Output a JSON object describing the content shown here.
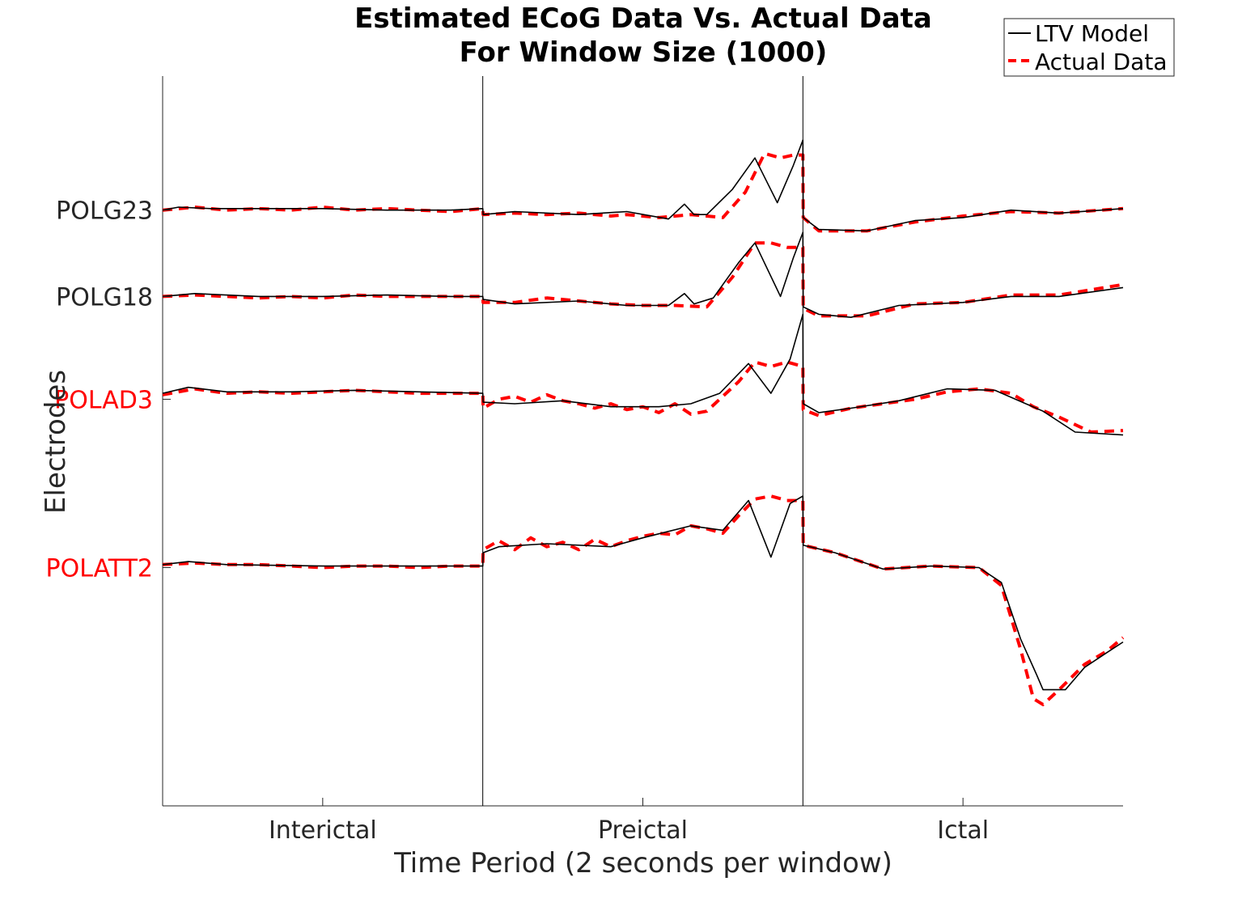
{
  "chart_data": {
    "type": "line",
    "title": [
      "Estimated ECoG Data Vs. Actual Data",
      "For Window Size (1000)"
    ],
    "xlabel": "Time Period (2 seconds per window)",
    "ylabel": "Electrodes",
    "x_ticks": [
      {
        "label": "Interictal",
        "x": 0.5
      },
      {
        "label": "Preictal",
        "x": 1.5
      },
      {
        "label": "Ictal",
        "x": 2.5
      }
    ],
    "xlim": [
      0,
      3
    ],
    "ylim": [
      -0.5,
      4.4
    ],
    "period_boundaries": [
      1,
      2
    ],
    "electrodes": [
      {
        "label": "POLG23",
        "offset": 3.5,
        "color": "#262626"
      },
      {
        "label": "POLG18",
        "offset": 2.92,
        "color": "#262626"
      },
      {
        "label": "POLAD3",
        "offset": 2.23,
        "color": "#ff0000"
      },
      {
        "label": "POLATT2",
        "offset": 1.1,
        "color": "#ff0000"
      }
    ],
    "legend": {
      "position": "top-right",
      "entries": [
        {
          "name": "LTV Model",
          "color": "#000000",
          "style": "solid"
        },
        {
          "name": "Actual Data",
          "color": "#ff0000",
          "style": "dashed"
        }
      ]
    },
    "series": [
      {
        "electrode": "POLG23",
        "model": [
          [
            0.0,
            3.5
          ],
          [
            0.05,
            3.52
          ],
          [
            0.15,
            3.51
          ],
          [
            0.3,
            3.51
          ],
          [
            0.5,
            3.51
          ],
          [
            0.7,
            3.5
          ],
          [
            0.9,
            3.5
          ],
          [
            1.0,
            3.51
          ],
          [
            1.001,
            3.47
          ],
          [
            1.1,
            3.49
          ],
          [
            1.3,
            3.47
          ],
          [
            1.45,
            3.49
          ],
          [
            1.58,
            3.44
          ],
          [
            1.63,
            3.54
          ],
          [
            1.66,
            3.47
          ],
          [
            1.7,
            3.47
          ],
          [
            1.78,
            3.64
          ],
          [
            1.85,
            3.85
          ],
          [
            1.92,
            3.55
          ],
          [
            1.97,
            3.8
          ],
          [
            2.0,
            3.97
          ],
          [
            2.001,
            3.45
          ],
          [
            2.05,
            3.37
          ],
          [
            2.2,
            3.36
          ],
          [
            2.35,
            3.43
          ],
          [
            2.5,
            3.45
          ],
          [
            2.65,
            3.5
          ],
          [
            2.8,
            3.48
          ],
          [
            3.0,
            3.51
          ]
        ],
        "actual": [
          [
            0.0,
            3.5
          ],
          [
            0.1,
            3.52
          ],
          [
            0.2,
            3.5
          ],
          [
            0.3,
            3.51
          ],
          [
            0.4,
            3.5
          ],
          [
            0.5,
            3.52
          ],
          [
            0.6,
            3.5
          ],
          [
            0.7,
            3.51
          ],
          [
            0.8,
            3.5
          ],
          [
            0.9,
            3.49
          ],
          [
            1.0,
            3.51
          ],
          [
            1.001,
            3.47
          ],
          [
            1.1,
            3.48
          ],
          [
            1.2,
            3.47
          ],
          [
            1.3,
            3.48
          ],
          [
            1.4,
            3.46
          ],
          [
            1.45,
            3.47
          ],
          [
            1.55,
            3.45
          ],
          [
            1.65,
            3.47
          ],
          [
            1.75,
            3.45
          ],
          [
            1.82,
            3.62
          ],
          [
            1.88,
            3.88
          ],
          [
            1.93,
            3.85
          ],
          [
            1.97,
            3.87
          ],
          [
            2.0,
            3.87
          ],
          [
            2.001,
            3.45
          ],
          [
            2.05,
            3.36
          ],
          [
            2.2,
            3.36
          ],
          [
            2.35,
            3.42
          ],
          [
            2.5,
            3.46
          ],
          [
            2.65,
            3.49
          ],
          [
            2.8,
            3.48
          ],
          [
            3.0,
            3.51
          ]
        ]
      },
      {
        "electrode": "POLG18",
        "model": [
          [
            0.0,
            2.92
          ],
          [
            0.1,
            2.94
          ],
          [
            0.3,
            2.92
          ],
          [
            0.5,
            2.92
          ],
          [
            0.7,
            2.93
          ],
          [
            0.9,
            2.92
          ],
          [
            1.0,
            2.92
          ],
          [
            1.001,
            2.9
          ],
          [
            1.1,
            2.87
          ],
          [
            1.3,
            2.89
          ],
          [
            1.45,
            2.86
          ],
          [
            1.58,
            2.86
          ],
          [
            1.63,
            2.94
          ],
          [
            1.66,
            2.87
          ],
          [
            1.72,
            2.91
          ],
          [
            1.8,
            3.15
          ],
          [
            1.85,
            3.28
          ],
          [
            1.93,
            2.92
          ],
          [
            1.97,
            3.18
          ],
          [
            2.0,
            3.35
          ],
          [
            2.001,
            2.85
          ],
          [
            2.05,
            2.8
          ],
          [
            2.15,
            2.78
          ],
          [
            2.3,
            2.86
          ],
          [
            2.5,
            2.88
          ],
          [
            2.65,
            2.92
          ],
          [
            2.8,
            2.92
          ],
          [
            3.0,
            2.98
          ]
        ],
        "actual": [
          [
            0.0,
            2.92
          ],
          [
            0.1,
            2.93
          ],
          [
            0.2,
            2.92
          ],
          [
            0.3,
            2.91
          ],
          [
            0.4,
            2.92
          ],
          [
            0.5,
            2.91
          ],
          [
            0.6,
            2.93
          ],
          [
            0.7,
            2.92
          ],
          [
            0.8,
            2.92
          ],
          [
            0.9,
            2.92
          ],
          [
            1.0,
            2.92
          ],
          [
            1.001,
            2.88
          ],
          [
            1.1,
            2.88
          ],
          [
            1.2,
            2.91
          ],
          [
            1.3,
            2.89
          ],
          [
            1.4,
            2.87
          ],
          [
            1.5,
            2.86
          ],
          [
            1.6,
            2.86
          ],
          [
            1.7,
            2.85
          ],
          [
            1.78,
            3.05
          ],
          [
            1.85,
            3.28
          ],
          [
            1.9,
            3.28
          ],
          [
            1.95,
            3.25
          ],
          [
            2.0,
            3.25
          ],
          [
            2.001,
            2.84
          ],
          [
            2.05,
            2.79
          ],
          [
            2.2,
            2.79
          ],
          [
            2.35,
            2.87
          ],
          [
            2.5,
            2.88
          ],
          [
            2.65,
            2.93
          ],
          [
            2.8,
            2.93
          ],
          [
            3.0,
            3.0
          ]
        ]
      },
      {
        "electrode": "POLAD3",
        "model": [
          [
            0.0,
            2.27
          ],
          [
            0.08,
            2.31
          ],
          [
            0.2,
            2.28
          ],
          [
            0.4,
            2.28
          ],
          [
            0.6,
            2.29
          ],
          [
            0.8,
            2.28
          ],
          [
            1.0,
            2.27
          ],
          [
            1.001,
            2.21
          ],
          [
            1.1,
            2.2
          ],
          [
            1.25,
            2.22
          ],
          [
            1.4,
            2.18
          ],
          [
            1.55,
            2.18
          ],
          [
            1.65,
            2.2
          ],
          [
            1.74,
            2.27
          ],
          [
            1.83,
            2.47
          ],
          [
            1.9,
            2.27
          ],
          [
            1.96,
            2.5
          ],
          [
            2.0,
            2.8
          ],
          [
            2.001,
            2.2
          ],
          [
            2.05,
            2.14
          ],
          [
            2.15,
            2.17
          ],
          [
            2.3,
            2.22
          ],
          [
            2.45,
            2.3
          ],
          [
            2.6,
            2.29
          ],
          [
            2.75,
            2.15
          ],
          [
            2.85,
            2.01
          ],
          [
            3.0,
            1.99
          ]
        ],
        "actual": [
          [
            0.0,
            2.26
          ],
          [
            0.1,
            2.3
          ],
          [
            0.2,
            2.27
          ],
          [
            0.3,
            2.28
          ],
          [
            0.4,
            2.27
          ],
          [
            0.5,
            2.28
          ],
          [
            0.6,
            2.29
          ],
          [
            0.7,
            2.28
          ],
          [
            0.8,
            2.27
          ],
          [
            0.9,
            2.27
          ],
          [
            1.0,
            2.27
          ],
          [
            1.001,
            2.17
          ],
          [
            1.05,
            2.23
          ],
          [
            1.1,
            2.25
          ],
          [
            1.15,
            2.21
          ],
          [
            1.2,
            2.26
          ],
          [
            1.25,
            2.22
          ],
          [
            1.3,
            2.2
          ],
          [
            1.35,
            2.17
          ],
          [
            1.4,
            2.2
          ],
          [
            1.45,
            2.16
          ],
          [
            1.5,
            2.18
          ],
          [
            1.55,
            2.14
          ],
          [
            1.6,
            2.2
          ],
          [
            1.65,
            2.13
          ],
          [
            1.7,
            2.15
          ],
          [
            1.75,
            2.25
          ],
          [
            1.8,
            2.35
          ],
          [
            1.85,
            2.48
          ],
          [
            1.9,
            2.45
          ],
          [
            1.95,
            2.48
          ],
          [
            2.0,
            2.45
          ],
          [
            2.001,
            2.16
          ],
          [
            2.05,
            2.12
          ],
          [
            2.15,
            2.17
          ],
          [
            2.25,
            2.2
          ],
          [
            2.35,
            2.23
          ],
          [
            2.45,
            2.28
          ],
          [
            2.55,
            2.3
          ],
          [
            2.65,
            2.27
          ],
          [
            2.72,
            2.18
          ],
          [
            2.8,
            2.11
          ],
          [
            2.9,
            2.01
          ],
          [
            3.0,
            2.02
          ]
        ]
      },
      {
        "electrode": "POLATT2",
        "model": [
          [
            0.0,
            1.12
          ],
          [
            0.08,
            1.14
          ],
          [
            0.2,
            1.12
          ],
          [
            0.5,
            1.11
          ],
          [
            0.9,
            1.11
          ],
          [
            1.0,
            1.11
          ],
          [
            1.001,
            1.2
          ],
          [
            1.05,
            1.24
          ],
          [
            1.2,
            1.26
          ],
          [
            1.4,
            1.24
          ],
          [
            1.5,
            1.3
          ],
          [
            1.65,
            1.38
          ],
          [
            1.75,
            1.35
          ],
          [
            1.83,
            1.55
          ],
          [
            1.9,
            1.17
          ],
          [
            1.96,
            1.53
          ],
          [
            2.0,
            1.58
          ],
          [
            2.001,
            1.25
          ],
          [
            2.1,
            1.2
          ],
          [
            2.25,
            1.09
          ],
          [
            2.4,
            1.11
          ],
          [
            2.55,
            1.1
          ],
          [
            2.62,
            1.0
          ],
          [
            2.68,
            0.62
          ],
          [
            2.73,
            0.38
          ],
          [
            2.75,
            0.28
          ],
          [
            2.82,
            0.28
          ],
          [
            2.88,
            0.43
          ],
          [
            2.95,
            0.53
          ],
          [
            3.0,
            0.6
          ]
        ],
        "actual": [
          [
            0.0,
            1.12
          ],
          [
            0.1,
            1.13
          ],
          [
            0.2,
            1.12
          ],
          [
            0.3,
            1.12
          ],
          [
            0.4,
            1.11
          ],
          [
            0.5,
            1.1
          ],
          [
            0.6,
            1.11
          ],
          [
            0.7,
            1.11
          ],
          [
            0.8,
            1.1
          ],
          [
            0.9,
            1.11
          ],
          [
            1.0,
            1.11
          ],
          [
            1.001,
            1.22
          ],
          [
            1.05,
            1.28
          ],
          [
            1.1,
            1.22
          ],
          [
            1.15,
            1.3
          ],
          [
            1.2,
            1.24
          ],
          [
            1.25,
            1.27
          ],
          [
            1.3,
            1.22
          ],
          [
            1.35,
            1.29
          ],
          [
            1.4,
            1.24
          ],
          [
            1.45,
            1.28
          ],
          [
            1.5,
            1.31
          ],
          [
            1.55,
            1.33
          ],
          [
            1.6,
            1.32
          ],
          [
            1.65,
            1.38
          ],
          [
            1.7,
            1.36
          ],
          [
            1.75,
            1.33
          ],
          [
            1.8,
            1.45
          ],
          [
            1.85,
            1.56
          ],
          [
            1.9,
            1.58
          ],
          [
            1.95,
            1.55
          ],
          [
            2.0,
            1.55
          ],
          [
            2.001,
            1.25
          ],
          [
            2.1,
            1.2
          ],
          [
            2.25,
            1.09
          ],
          [
            2.4,
            1.11
          ],
          [
            2.55,
            1.1
          ],
          [
            2.62,
            0.98
          ],
          [
            2.68,
            0.55
          ],
          [
            2.72,
            0.22
          ],
          [
            2.75,
            0.18
          ],
          [
            2.8,
            0.28
          ],
          [
            2.88,
            0.45
          ],
          [
            2.95,
            0.54
          ],
          [
            3.0,
            0.63
          ]
        ]
      }
    ]
  }
}
